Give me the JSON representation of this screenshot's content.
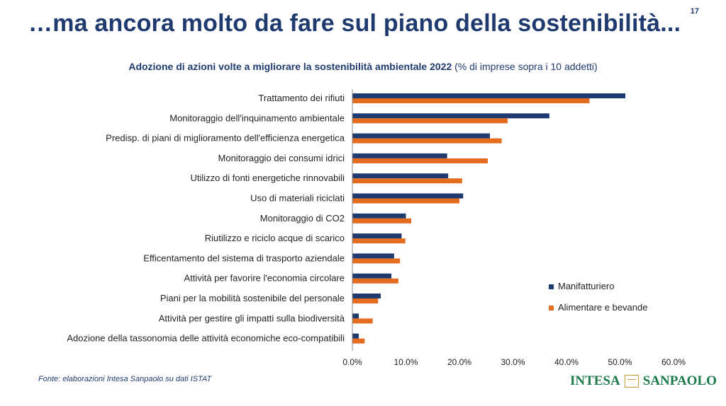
{
  "page": {
    "title": "…ma ancora molto da fare sul piano della sostenibilità...",
    "page_number": "17",
    "subtitle_bold": "Adozione di azioni volte a migliorare la sostenibilità ambientale 2022",
    "subtitle_rest": " (% di imprese sopra i 10 addetti)",
    "source": "Fonte: elaborazioni Intesa Sanpaolo su dati ISTAT",
    "logo_left": "INTESA",
    "logo_right": "SANPAOLO"
  },
  "chart_data": {
    "type": "bar",
    "orientation": "horizontal",
    "categories": [
      "Trattamento dei rifiuti",
      "Monitoraggio dell'inquinamento ambientale",
      "Predisp. di piani di miglioramento dell'efficienza energetica",
      "Monitoraggio dei consumi idrici",
      "Utilizzo di fonti energetiche rinnovabili",
      "Uso di materiali riciclati",
      "Monitoraggio di CO2",
      "Riutilizzo e riciclo acque di scarico",
      "Efficentamento del sistema di trasporto aziendale",
      "Attività per favorire l'economia circolare",
      "Piani per la mobilità sostenibile del personale",
      "Attività per gestire gli impatti sulla biodiversità",
      "Adozione della tassonomia delle attività economiche eco-compatibili"
    ],
    "series": [
      {
        "name": "Manifatturiero",
        "color": "#1f3a6e",
        "values": [
          51.0,
          36.8,
          25.7,
          17.7,
          17.9,
          20.7,
          10.0,
          9.2,
          7.8,
          7.3,
          5.3,
          1.2,
          1.2
        ]
      },
      {
        "name": "Alimentare e bevande",
        "color": "#e46c1f",
        "values": [
          44.3,
          29.0,
          27.9,
          25.3,
          20.5,
          20.0,
          11.0,
          9.9,
          8.9,
          8.6,
          4.8,
          3.8,
          2.3
        ]
      }
    ],
    "xlim": [
      0,
      60
    ],
    "x_ticks": [
      "0.0%",
      "10.0%",
      "20.0%",
      "30.0%",
      "40.0%",
      "50.0%",
      "60.0%"
    ],
    "grid": false,
    "legend_position": "bottom-right"
  }
}
